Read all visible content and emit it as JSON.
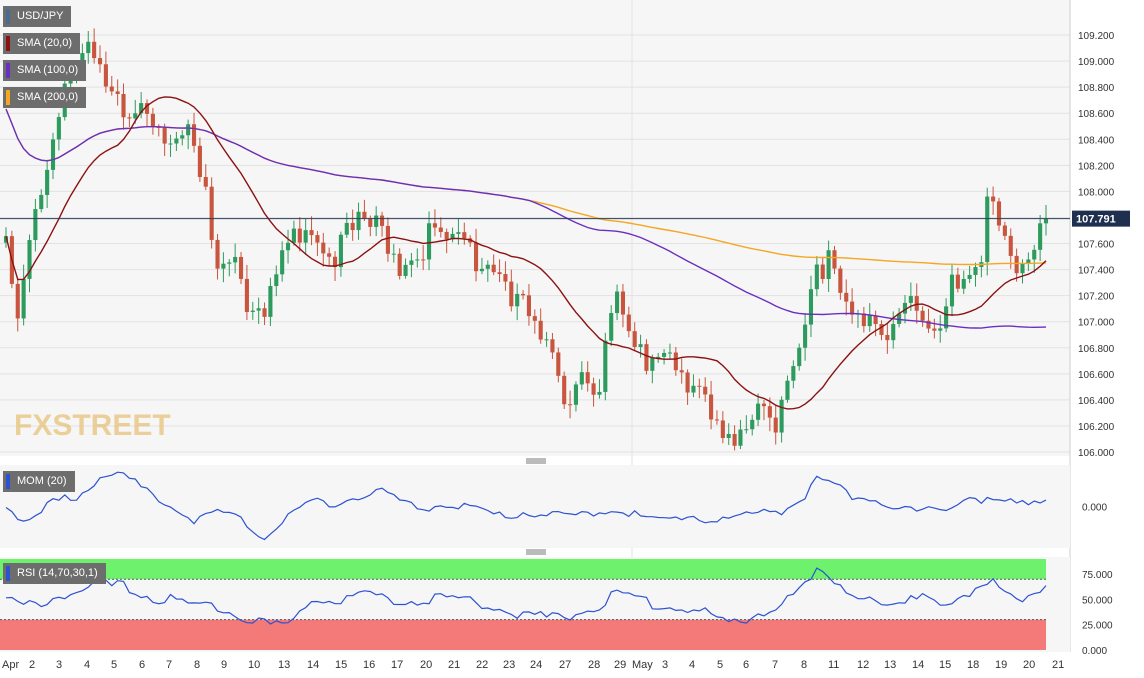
{
  "colors": {
    "up": "#2e9b5e",
    "down": "#c8553d",
    "sma20": "#8b1212",
    "sma100": "#6a2fc2",
    "sma200": "#f5a623",
    "mom": "#2c52d0",
    "rsi": "#2c52d0",
    "rsi_over": "#6ef26e",
    "rsi_under": "#f47a7a",
    "grid": "#e2e2e2",
    "panel_bg": "#f6f6f6",
    "last_price_bg": "#1f2f4f"
  },
  "legend": {
    "pair": "USD/JPY",
    "sma20": "SMA (20,0)",
    "sma100": "SMA (100,0)",
    "sma200": "SMA (200,0)",
    "mom": "MOM (20)",
    "rsi": "RSI (14,70,30,1)"
  },
  "watermark": "FXSTREET",
  "last_price": "107.791",
  "chart_data": [
    {
      "type": "candlestick",
      "title": "USD/JPY",
      "ylim": [
        106.0,
        109.3
      ],
      "yticks": [
        "109.200",
        "109.000",
        "108.800",
        "108.600",
        "108.400",
        "108.200",
        "108.000",
        "107.800",
        "107.600",
        "107.400",
        "107.200",
        "107.000",
        "106.800",
        "106.600",
        "106.400",
        "106.200",
        "106.000"
      ],
      "x_labels": [
        "Apr",
        "2",
        "3",
        "4",
        "5",
        "6",
        "7",
        "8",
        "9",
        "10",
        "13",
        "14",
        "15",
        "16",
        "17",
        "20",
        "21",
        "22",
        "23",
        "24",
        "27",
        "28",
        "29",
        "May",
        "3",
        "4",
        "5",
        "6",
        "7",
        "8",
        "11",
        "12",
        "13",
        "14",
        "15",
        "18",
        "19",
        "20",
        "21"
      ],
      "last": 107.791,
      "anchors": [
        [
          0,
          107.65
        ],
        [
          2,
          107.0
        ],
        [
          4,
          107.6
        ],
        [
          7,
          108.35
        ],
        [
          10,
          108.9
        ],
        [
          12,
          109.1
        ],
        [
          14,
          109.15
        ],
        [
          17,
          108.85
        ],
        [
          20,
          108.7
        ],
        [
          23,
          108.85
        ],
        [
          26,
          108.6
        ],
        [
          28,
          108.4
        ],
        [
          31,
          108.45
        ],
        [
          34,
          108.0
        ],
        [
          36,
          107.55
        ],
        [
          39,
          107.7
        ],
        [
          41,
          107.2
        ],
        [
          44,
          107.1
        ],
        [
          47,
          107.5
        ],
        [
          50,
          107.8
        ],
        [
          53,
          107.8
        ],
        [
          56,
          107.6
        ],
        [
          60,
          107.8
        ],
        [
          64,
          107.75
        ],
        [
          67,
          107.55
        ],
        [
          70,
          107.65
        ],
        [
          73,
          107.75
        ],
        [
          75,
          107.7
        ],
        [
          78,
          107.65
        ],
        [
          80,
          107.5
        ],
        [
          83,
          107.55
        ],
        [
          86,
          107.3
        ],
        [
          89,
          107.05
        ],
        [
          92,
          106.8
        ],
        [
          95,
          106.5
        ],
        [
          98,
          106.7
        ],
        [
          101,
          106.6
        ],
        [
          104,
          107.2
        ],
        [
          107,
          106.8
        ],
        [
          110,
          106.8
        ],
        [
          113,
          106.9
        ],
        [
          116,
          106.6
        ],
        [
          119,
          106.4
        ],
        [
          122,
          106.1
        ],
        [
          125,
          106.3
        ],
        [
          128,
          106.5
        ],
        [
          131,
          106.3
        ],
        [
          134,
          106.7
        ],
        [
          136,
          107.0
        ],
        [
          138,
          107.4
        ],
        [
          140,
          107.65
        ],
        [
          142,
          107.4
        ],
        [
          144,
          107.2
        ],
        [
          147,
          107.05
        ],
        [
          150,
          106.85
        ],
        [
          152,
          107.0
        ],
        [
          154,
          107.3
        ],
        [
          156,
          107.2
        ],
        [
          158,
          107.05
        ],
        [
          161,
          107.3
        ],
        [
          164,
          107.35
        ],
        [
          166,
          107.5
        ],
        [
          167,
          107.9
        ],
        [
          170,
          107.8
        ],
        [
          172,
          107.5
        ],
        [
          174,
          107.6
        ],
        [
          177,
          107.79
        ]
      ]
    },
    {
      "type": "line",
      "title": "MOM (20)",
      "yticks": [
        "0.000"
      ],
      "ylim": [
        -1.0,
        1.0
      ],
      "anchors": [
        [
          0,
          0.05
        ],
        [
          4,
          -0.4
        ],
        [
          8,
          0.2
        ],
        [
          12,
          0.3
        ],
        [
          16,
          0.85
        ],
        [
          20,
          0.9
        ],
        [
          24,
          0.45
        ],
        [
          28,
          0.1
        ],
        [
          32,
          -0.3
        ],
        [
          36,
          -0.1
        ],
        [
          40,
          -0.3
        ],
        [
          44,
          -0.75
        ],
        [
          48,
          -0.2
        ],
        [
          52,
          0.2
        ],
        [
          56,
          0.15
        ],
        [
          60,
          0.35
        ],
        [
          64,
          0.45
        ],
        [
          68,
          0.1
        ],
        [
          72,
          0.05
        ],
        [
          76,
          0.15
        ],
        [
          80,
          0.0
        ],
        [
          84,
          -0.2
        ],
        [
          88,
          -0.1
        ],
        [
          92,
          -0.15
        ],
        [
          96,
          -0.2
        ],
        [
          100,
          -0.1
        ],
        [
          104,
          0.0
        ],
        [
          108,
          -0.2
        ],
        [
          112,
          -0.35
        ],
        [
          116,
          -0.15
        ],
        [
          120,
          -0.3
        ],
        [
          124,
          -0.25
        ],
        [
          128,
          -0.1
        ],
        [
          132,
          -0.05
        ],
        [
          136,
          0.3
        ],
        [
          138,
          0.8
        ],
        [
          140,
          0.7
        ],
        [
          144,
          0.35
        ],
        [
          148,
          0.25
        ],
        [
          152,
          0.0
        ],
        [
          156,
          -0.1
        ],
        [
          160,
          0.05
        ],
        [
          164,
          0.3
        ],
        [
          168,
          0.2
        ],
        [
          172,
          0.15
        ],
        [
          177,
          0.25
        ]
      ]
    },
    {
      "type": "line",
      "title": "RSI (14,70,30,1)",
      "ylim": [
        0,
        90
      ],
      "yticks": [
        "75.000",
        "50.000",
        "25.000",
        "0.000"
      ],
      "overbought": 70,
      "oversold": 30,
      "anchors": [
        [
          0,
          50
        ],
        [
          4,
          47
        ],
        [
          8,
          55
        ],
        [
          12,
          60
        ],
        [
          16,
          68
        ],
        [
          20,
          65
        ],
        [
          24,
          57
        ],
        [
          28,
          52
        ],
        [
          32,
          45
        ],
        [
          36,
          47
        ],
        [
          40,
          38
        ],
        [
          44,
          28
        ],
        [
          48,
          25
        ],
        [
          52,
          55
        ],
        [
          56,
          53
        ],
        [
          60,
          58
        ],
        [
          64,
          55
        ],
        [
          68,
          50
        ],
        [
          72,
          54
        ],
        [
          76,
          55
        ],
        [
          80,
          50
        ],
        [
          84,
          45
        ],
        [
          88,
          38
        ],
        [
          92,
          35
        ],
        [
          96,
          38
        ],
        [
          100,
          45
        ],
        [
          104,
          58
        ],
        [
          108,
          52
        ],
        [
          112,
          47
        ],
        [
          116,
          45
        ],
        [
          120,
          38
        ],
        [
          124,
          28
        ],
        [
          128,
          40
        ],
        [
          132,
          48
        ],
        [
          136,
          65
        ],
        [
          138,
          78
        ],
        [
          140,
          75
        ],
        [
          144,
          60
        ],
        [
          148,
          48
        ],
        [
          152,
          45
        ],
        [
          156,
          60
        ],
        [
          160,
          50
        ],
        [
          164,
          55
        ],
        [
          168,
          70
        ],
        [
          172,
          55
        ],
        [
          177,
          62
        ]
      ]
    }
  ]
}
